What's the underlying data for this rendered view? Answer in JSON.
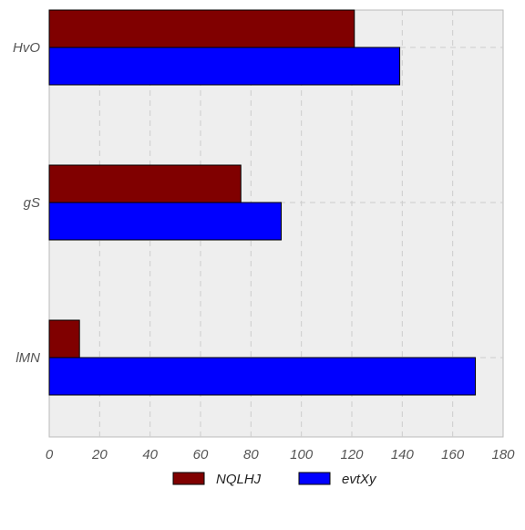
{
  "chart_data": {
    "type": "bar",
    "orientation": "horizontal",
    "categories": [
      "HvO",
      "gS",
      "lMN"
    ],
    "series": [
      {
        "name": "NQLHJ",
        "values": [
          121,
          76,
          12
        ],
        "color": "#800000"
      },
      {
        "name": "evtXy",
        "values": [
          139,
          92,
          169
        ],
        "color": "#0000ff"
      }
    ],
    "x_ticks": [
      "0",
      "20",
      "40",
      "60",
      "80",
      "100",
      "120",
      "140",
      "160",
      "180"
    ],
    "xlim": [
      0,
      180
    ],
    "grid": true,
    "legend_position": "bottom",
    "background": "#eeeeee"
  }
}
